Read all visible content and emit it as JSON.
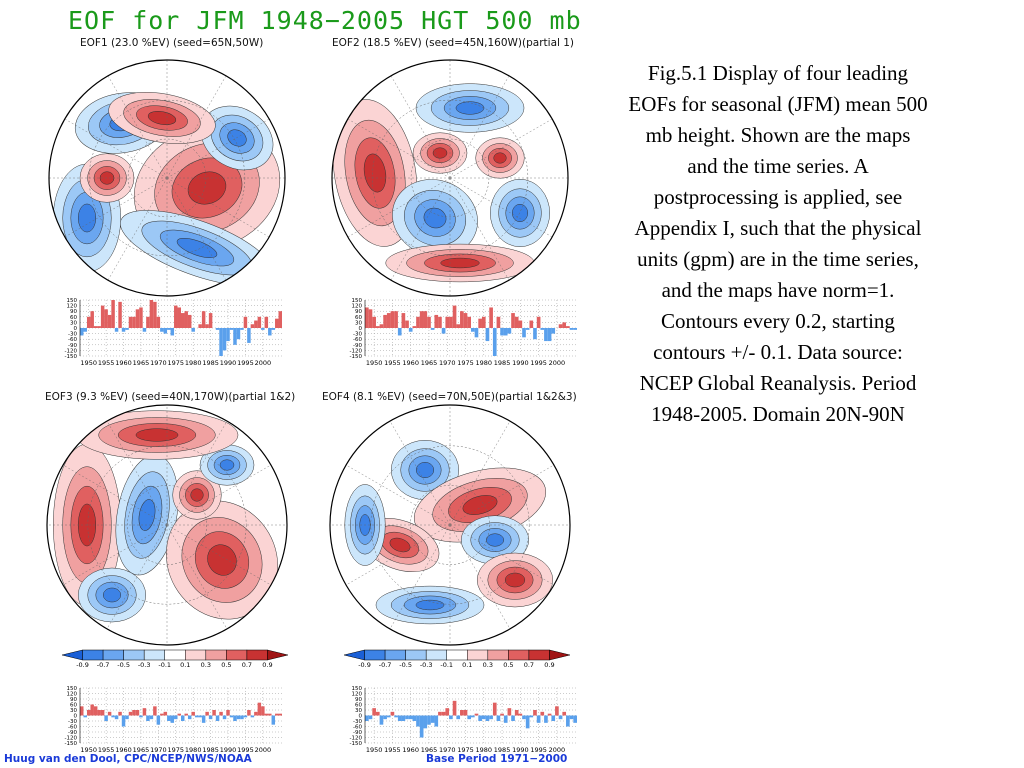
{
  "title": "EOF for JFM 1948−2005 HGT 500 mb",
  "panels": [
    {
      "label": "EOF1 (23.0 %EV)  (seed=65N,50W)"
    },
    {
      "label": "EOF2 (18.5 %EV) (seed=45N,160W)(partial 1)"
    },
    {
      "label": "EOF3 (9.3 %EV)  (seed=40N,170W)(partial 1&2)"
    },
    {
      "label": "EOF4 (8.1 %EV)  (seed=70N,50E)(partial 1&2&3)"
    }
  ],
  "colorbar": {
    "labels": [
      "-0.9",
      "-0.7",
      "-0.5",
      "-0.3",
      "-0.1",
      "0.1",
      "0.3",
      "0.5",
      "0.7",
      "0.9"
    ],
    "colors": [
      "#1a5fd6",
      "#3c82e6",
      "#6aa6f0",
      "#9cc8f6",
      "#cce6fb",
      "#ffffff",
      "#fbd4d4",
      "#f0a0a0",
      "#e06060",
      "#c83232",
      "#a01414"
    ]
  },
  "caption": "Fig.5.1 Display of  four leading EOFs for seasonal (JFM) mean 500 mb height. Shown are the maps and the time series. A postprocessing is applied, see Appendix I, such that the physical units (gpm) are in the time series, and the maps have norm=1. Contours every 0.2, starting contours +/- 0.1. Data source: NCEP Global Reanalysis. Period 1948-2005. Domain 20N-90N",
  "footer": {
    "left": "Huug van den Dool, CPC/NCEP/NWS/NOAA",
    "right": "Base Period 1971−2000"
  },
  "colors": {
    "positive": "#e06060",
    "negative": "#5aa0ec",
    "title": "#1a9a1a",
    "footer": "#1a3ad8"
  },
  "chart_data": [
    {
      "type": "bar",
      "name": "EOF1",
      "x_start": 1948,
      "x_end": 2005,
      "xticks": [
        "1950",
        "1955",
        "1960",
        "1965",
        "1970",
        "1975",
        "1980",
        "1985",
        "1990",
        "1995",
        "2000"
      ],
      "yticks": [
        "150",
        "120",
        "90",
        "60",
        "30",
        "0",
        "-30",
        "-60",
        "-90",
        "-120",
        "-150"
      ],
      "ylim": [
        -150,
        150
      ],
      "grid": true,
      "values": [
        -40,
        -20,
        60,
        90,
        10,
        10,
        120,
        100,
        70,
        150,
        -20,
        140,
        -20,
        -10,
        60,
        60,
        100,
        110,
        -20,
        60,
        150,
        140,
        60,
        -20,
        -30,
        -10,
        -40,
        120,
        110,
        80,
        90,
        70,
        -20,
        0,
        20,
        90,
        20,
        80,
        0,
        -10,
        -150,
        -120,
        -70,
        -10,
        -90,
        -60,
        -10,
        60,
        -80,
        20,
        40,
        60,
        -10,
        60,
        -40,
        -10,
        50,
        90
      ]
    },
    {
      "type": "bar",
      "name": "EOF2",
      "x_start": 1948,
      "x_end": 2005,
      "xticks": [
        "1950",
        "1955",
        "1960",
        "1965",
        "1970",
        "1975",
        "1980",
        "1985",
        "1990",
        "1995",
        "2000"
      ],
      "yticks": [
        "150",
        "120",
        "90",
        "60",
        "30",
        "0",
        "-30",
        "-60",
        "-90",
        "-120",
        "-150"
      ],
      "ylim": [
        -150,
        150
      ],
      "grid": true,
      "values": [
        110,
        100,
        60,
        10,
        20,
        70,
        80,
        90,
        90,
        -40,
        80,
        40,
        -20,
        10,
        60,
        90,
        90,
        60,
        -10,
        70,
        60,
        -30,
        60,
        60,
        120,
        20,
        90,
        80,
        60,
        -20,
        -50,
        50,
        60,
        -70,
        110,
        -150,
        60,
        -40,
        -40,
        -30,
        80,
        60,
        40,
        -50,
        -10,
        40,
        -60,
        60,
        -10,
        -70,
        -70,
        -30,
        0,
        20,
        30,
        10,
        -10,
        -10
      ]
    },
    {
      "type": "bar",
      "name": "EOF3",
      "x_start": 1948,
      "x_end": 2005,
      "xticks": [
        "1950",
        "1955",
        "1960",
        "1965",
        "1970",
        "1975",
        "1980",
        "1985",
        "1990",
        "1995",
        "2000"
      ],
      "yticks": [
        "150",
        "120",
        "90",
        "60",
        "30",
        "0",
        "-30",
        "-60",
        "-90",
        "-120",
        "-150"
      ],
      "ylim": [
        -150,
        150
      ],
      "grid": true,
      "values": [
        50,
        -10,
        30,
        60,
        50,
        30,
        30,
        -30,
        20,
        -10,
        -20,
        20,
        -60,
        -20,
        20,
        30,
        30,
        -10,
        40,
        -30,
        -20,
        50,
        -50,
        10,
        20,
        -30,
        -40,
        -20,
        10,
        -30,
        10,
        -20,
        20,
        -10,
        -10,
        -40,
        20,
        -20,
        30,
        -30,
        20,
        -20,
        30,
        -10,
        -30,
        -20,
        -20,
        -10,
        30,
        -10,
        20,
        70,
        50,
        10,
        10,
        -50,
        10,
        10
      ]
    },
    {
      "type": "bar",
      "name": "EOF4",
      "x_start": 1948,
      "x_end": 2005,
      "xticks": [
        "1950",
        "1955",
        "1960",
        "1965",
        "1970",
        "1975",
        "1980",
        "1985",
        "1990",
        "1995",
        "2000"
      ],
      "yticks": [
        "150",
        "120",
        "90",
        "60",
        "30",
        "0",
        "-30",
        "-60",
        "-90",
        "-120",
        "-150"
      ],
      "ylim": [
        -150,
        150
      ],
      "grid": true,
      "values": [
        -30,
        -20,
        40,
        20,
        -50,
        -20,
        -10,
        20,
        -10,
        -30,
        -30,
        -20,
        -20,
        -30,
        -60,
        -120,
        -70,
        -50,
        -40,
        -60,
        20,
        20,
        40,
        -20,
        80,
        -20,
        30,
        30,
        -20,
        -10,
        10,
        -30,
        -20,
        -30,
        -20,
        70,
        -30,
        10,
        -40,
        40,
        -30,
        30,
        10,
        -20,
        -70,
        -10,
        30,
        -40,
        20,
        -40,
        10,
        -30,
        50,
        -20,
        20,
        -60,
        -20,
        -40
      ]
    }
  ]
}
